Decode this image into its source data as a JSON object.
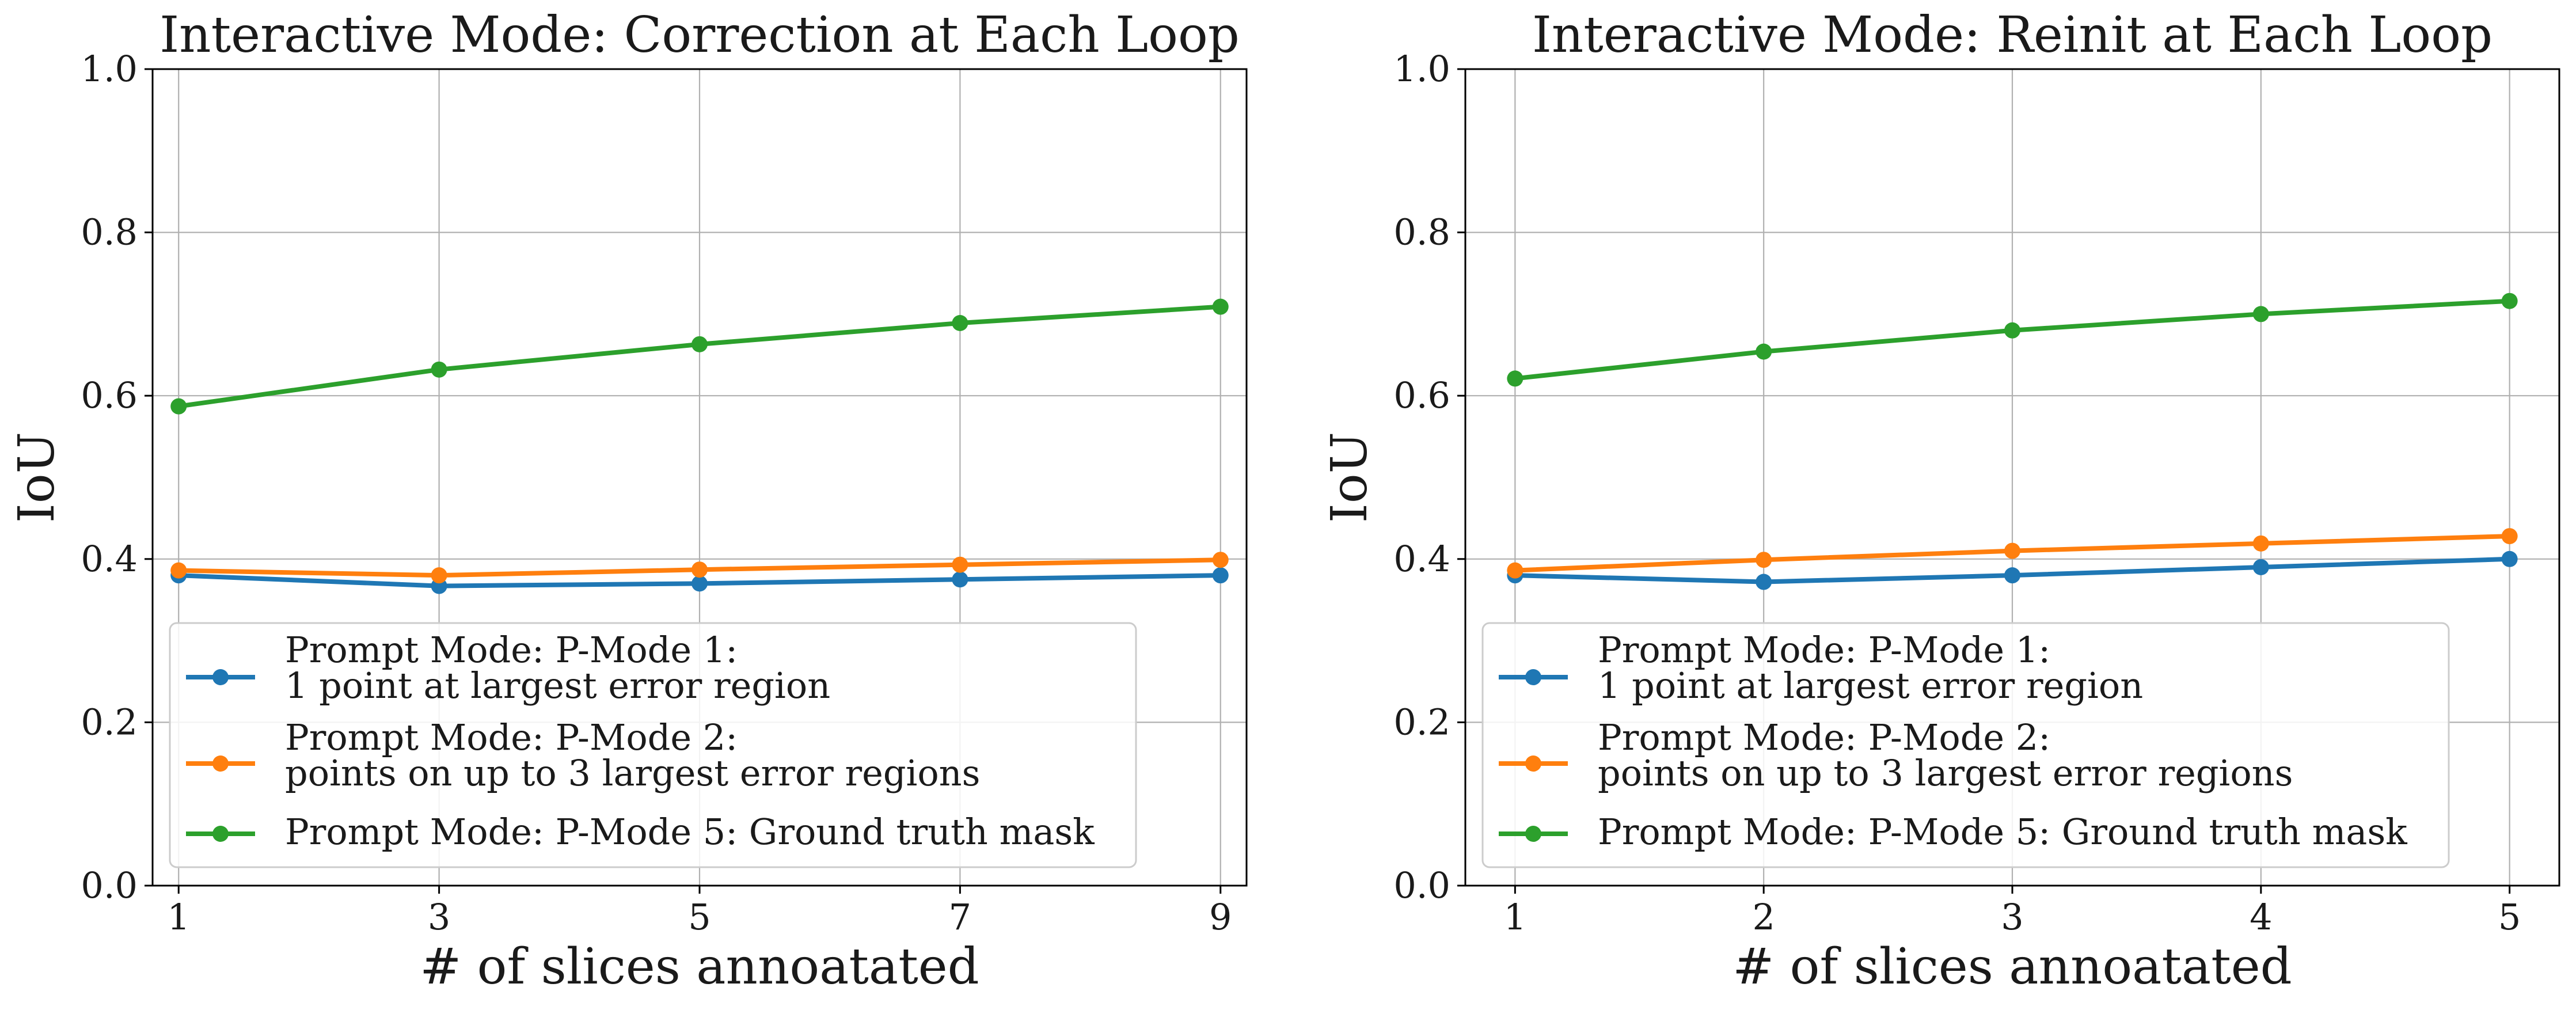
{
  "chart_data": [
    {
      "type": "line",
      "title": "Interactive Mode: Correction at Each Loop",
      "xlabel": "# of slices annoatated",
      "ylabel": "IoU",
      "x": [
        1,
        3,
        5,
        7,
        9
      ],
      "x_ticks": [
        "1",
        "3",
        "5",
        "7",
        "9"
      ],
      "xlim": [
        0.8,
        9.2
      ],
      "ylim": [
        0.0,
        1.0
      ],
      "y_ticks": [
        "0.0",
        "0.2",
        "0.4",
        "0.6",
        "0.8",
        "1.0"
      ],
      "grid": true,
      "legend_position": "lower-left",
      "series": [
        {
          "name": "Prompt Mode: P-Mode 1:\n1 point at largest error region",
          "color": "#1f77b4",
          "values": [
            0.38,
            0.367,
            0.37,
            0.375,
            0.38
          ]
        },
        {
          "name": "Prompt Mode: P-Mode 2:\npoints on up to 3 largest error regions",
          "color": "#ff7f0e",
          "values": [
            0.386,
            0.38,
            0.387,
            0.393,
            0.399
          ]
        },
        {
          "name": "Prompt Mode: P-Mode 5: Ground truth mask",
          "color": "#2ca02c",
          "values": [
            0.587,
            0.632,
            0.663,
            0.689,
            0.709
          ]
        }
      ]
    },
    {
      "type": "line",
      "title": "Interactive Mode: Reinit at Each Loop",
      "xlabel": "# of slices annoatated",
      "ylabel": "IoU",
      "x": [
        1,
        2,
        3,
        4,
        5
      ],
      "x_ticks": [
        "1",
        "2",
        "3",
        "4",
        "5"
      ],
      "xlim": [
        0.8,
        5.2
      ],
      "ylim": [
        0.0,
        1.0
      ],
      "y_ticks": [
        "0.0",
        "0.2",
        "0.4",
        "0.6",
        "0.8",
        "1.0"
      ],
      "grid": true,
      "legend_position": "lower-left",
      "series": [
        {
          "name": "Prompt Mode: P-Mode 1:\n1 point at largest error region",
          "color": "#1f77b4",
          "values": [
            0.38,
            0.372,
            0.38,
            0.39,
            0.4
          ]
        },
        {
          "name": "Prompt Mode: P-Mode 2:\npoints on up to 3 largest error regions",
          "color": "#ff7f0e",
          "values": [
            0.386,
            0.399,
            0.41,
            0.419,
            0.428
          ]
        },
        {
          "name": "Prompt Mode: P-Mode 5: Ground truth mask",
          "color": "#2ca02c",
          "values": [
            0.621,
            0.654,
            0.68,
            0.7,
            0.716
          ]
        }
      ]
    }
  ]
}
